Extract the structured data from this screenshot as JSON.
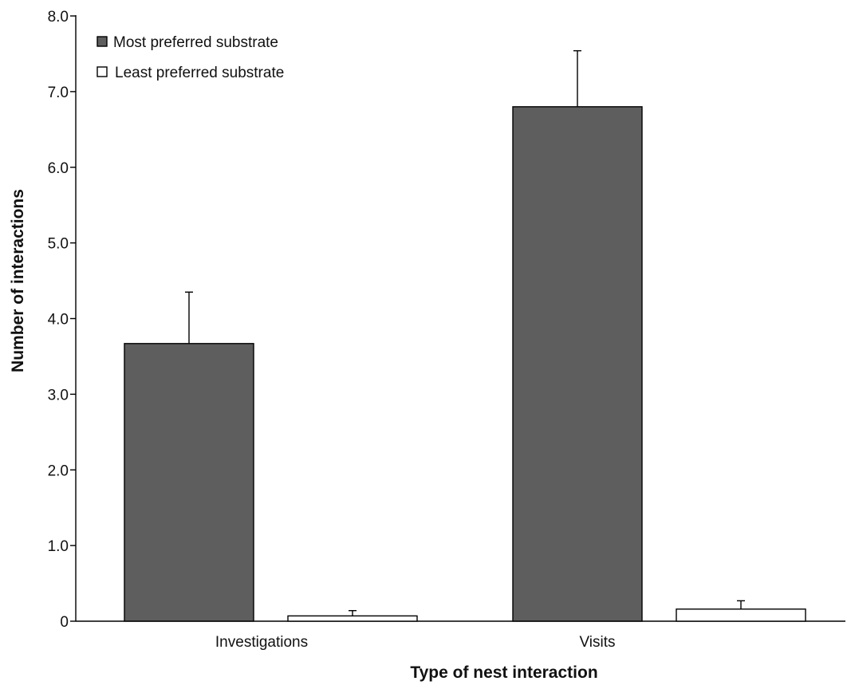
{
  "chart_data": {
    "type": "bar",
    "title": "",
    "xlabel": "Type of nest interaction",
    "ylabel": "Number of interactions",
    "ylim": [
      0,
      8
    ],
    "y_ticks": [
      "0",
      "1.0",
      "2.0",
      "3.0",
      "4.0",
      "5.0",
      "6.0",
      "7.0",
      "8.0"
    ],
    "y_tick_values": [
      0,
      1,
      2,
      3,
      4,
      5,
      6,
      7,
      8
    ],
    "categories": [
      "Investigations",
      "Visits"
    ],
    "series": [
      {
        "name": "Most preferred substrate",
        "color": "#5e5e5e",
        "values": [
          3.67,
          6.8
        ],
        "error_upper": [
          4.35,
          7.54
        ]
      },
      {
        "name": "Least preferred substrate",
        "color": "#ffffff",
        "values": [
          0.07,
          0.16
        ],
        "error_upper": [
          0.14,
          0.27
        ]
      }
    ],
    "grid": false,
    "legend_position": "top-left",
    "error_bars": "upper"
  }
}
